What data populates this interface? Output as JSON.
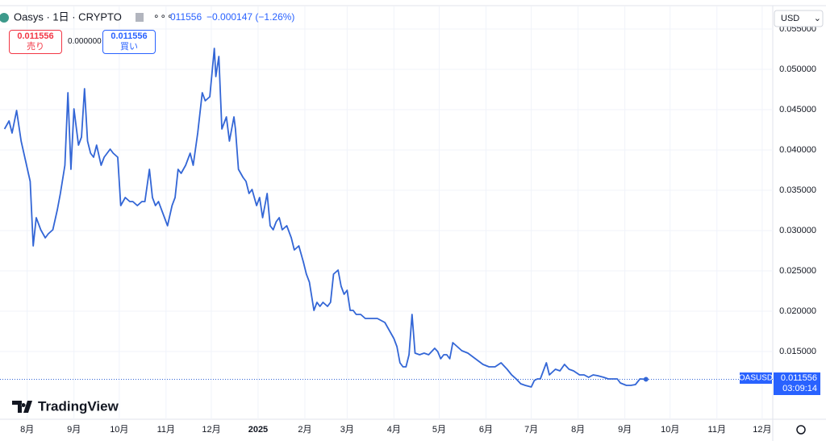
{
  "header": {
    "title": "Oasys · 1日 · CRYPTO",
    "last": "011556",
    "change": "−0.000147 (−1.26%)",
    "sell_price": "0.011556",
    "sell_label": "売り",
    "spread": "0.000000",
    "buy_price": "0.011556",
    "buy_label": "買い",
    "currency": "USD",
    "symbol": "OASUSD",
    "price_tag": "0.011556",
    "countdown": "03:09:14",
    "brand": "TradingView"
  },
  "chart_data": {
    "type": "line",
    "grid": true,
    "x": [
      -15,
      -12,
      -10,
      -7,
      -4,
      -1,
      2,
      4,
      6,
      9,
      12,
      14,
      17,
      20,
      22,
      25,
      27,
      29,
      31,
      34,
      36,
      38,
      40,
      42,
      44,
      46,
      49,
      51,
      53,
      55,
      57,
      60,
      62,
      65,
      68,
      70,
      73,
      76,
      78,
      81,
      83,
      85,
      87,
      90,
      93,
      96,
      98,
      100,
      102,
      105,
      108,
      110,
      113,
      116,
      118,
      121,
      124,
      125,
      127,
      129,
      132,
      134,
      137,
      138,
      140,
      143,
      145,
      147,
      149,
      152,
      154,
      156,
      159,
      161,
      163,
      165,
      167,
      169,
      172,
      175,
      177,
      180,
      183,
      185,
      187,
      190,
      192,
      194,
      196,
      199,
      201,
      203,
      206,
      208,
      210,
      212,
      214,
      216,
      218,
      221,
      224,
      228,
      232,
      237,
      240,
      243,
      245,
      247,
      249,
      251,
      253,
      255,
      257,
      260,
      263,
      266,
      270,
      272,
      274,
      276,
      278,
      280,
      282,
      285,
      288,
      292,
      297,
      302,
      306,
      310,
      314,
      318,
      321,
      324,
      327,
      330,
      334,
      336,
      338,
      340,
      342,
      344,
      346,
      350,
      353,
      356,
      359,
      362,
      366,
      369,
      372,
      375,
      378,
      382,
      385,
      388,
      391,
      393,
      397,
      400,
      403,
      406,
      410
    ],
    "series": [
      {
        "name": "OASUSD",
        "color": "#3366d6",
        "values": [
          0.0426,
          0.0436,
          0.0421,
          0.0449,
          0.0411,
          0.0386,
          0.0361,
          0.0281,
          0.0316,
          0.0301,
          0.0291,
          0.0296,
          0.0301,
          0.0326,
          0.0346,
          0.0381,
          0.0471,
          0.0376,
          0.0451,
          0.0406,
          0.0416,
          0.0476,
          0.0411,
          0.0396,
          0.0391,
          0.0406,
          0.0381,
          0.0391,
          0.0396,
          0.0401,
          0.0396,
          0.0391,
          0.0331,
          0.0341,
          0.0336,
          0.0336,
          0.0331,
          0.0336,
          0.0336,
          0.0376,
          0.0341,
          0.0331,
          0.0336,
          0.0321,
          0.0306,
          0.0331,
          0.0341,
          0.0376,
          0.0371,
          0.0381,
          0.0396,
          0.0381,
          0.0421,
          0.0471,
          0.0461,
          0.0466,
          0.0526,
          0.0491,
          0.0516,
          0.0426,
          0.0441,
          0.0411,
          0.0441,
          0.0426,
          0.0376,
          0.0366,
          0.0361,
          0.0346,
          0.0351,
          0.0331,
          0.0341,
          0.0316,
          0.0346,
          0.0306,
          0.0301,
          0.0311,
          0.0316,
          0.0301,
          0.0306,
          0.0291,
          0.0276,
          0.0281,
          0.0261,
          0.0246,
          0.0236,
          0.0201,
          0.0211,
          0.0206,
          0.0211,
          0.0206,
          0.0211,
          0.0246,
          0.0251,
          0.0231,
          0.0221,
          0.0226,
          0.0201,
          0.0201,
          0.0196,
          0.0196,
          0.0191,
          0.0191,
          0.0191,
          0.0186,
          0.0176,
          0.0166,
          0.0156,
          0.0136,
          0.0131,
          0.0131,
          0.0146,
          0.0196,
          0.0148,
          0.0146,
          0.0148,
          0.0146,
          0.0154,
          0.015,
          0.0141,
          0.0146,
          0.0146,
          0.0141,
          0.0161,
          0.0156,
          0.0151,
          0.0148,
          0.0141,
          0.0134,
          0.0131,
          0.0131,
          0.0136,
          0.0128,
          0.0121,
          0.0116,
          0.011,
          0.0108,
          0.0106,
          0.0114,
          0.0116,
          0.0116,
          0.0126,
          0.0136,
          0.0121,
          0.0128,
          0.0126,
          0.0134,
          0.0128,
          0.0126,
          0.0121,
          0.0121,
          0.0118,
          0.0121,
          0.012,
          0.0118,
          0.0116,
          0.0116,
          0.0116,
          0.0111,
          0.0108,
          0.0108,
          0.0109,
          0.0116,
          0.011556
        ]
      }
    ],
    "xlim": [
      -18,
      494
    ],
    "xticks": [
      {
        "value": 0,
        "label": "8月"
      },
      {
        "value": 31,
        "label": "9月"
      },
      {
        "value": 61,
        "label": "10月"
      },
      {
        "value": 92,
        "label": "11月"
      },
      {
        "value": 122,
        "label": "12月"
      },
      {
        "value": 153,
        "label": "2025"
      },
      {
        "value": 184,
        "label": "2月"
      },
      {
        "value": 212,
        "label": "3月"
      },
      {
        "value": 243,
        "label": "4月"
      },
      {
        "value": 273,
        "label": "5月"
      },
      {
        "value": 304,
        "label": "6月"
      },
      {
        "value": 334,
        "label": "7月"
      },
      {
        "value": 365,
        "label": "8月"
      },
      {
        "value": 396,
        "label": "9月"
      },
      {
        "value": 426,
        "label": "10月"
      },
      {
        "value": 457,
        "label": "11月"
      },
      {
        "value": 487,
        "label": "12月"
      }
    ],
    "ylim": [
      0.0066,
      0.0578
    ],
    "yticks": [
      {
        "value": 0.015,
        "label": "0.015000"
      },
      {
        "value": 0.02,
        "label": "0.020000"
      },
      {
        "value": 0.025,
        "label": "0.025000"
      },
      {
        "value": 0.03,
        "label": "0.030000"
      },
      {
        "value": 0.035,
        "label": "0.035000"
      },
      {
        "value": 0.04,
        "label": "0.040000"
      },
      {
        "value": 0.045,
        "label": "0.045000"
      },
      {
        "value": 0.05,
        "label": "0.050000"
      },
      {
        "value": 0.055,
        "label": "0.055000"
      }
    ]
  }
}
